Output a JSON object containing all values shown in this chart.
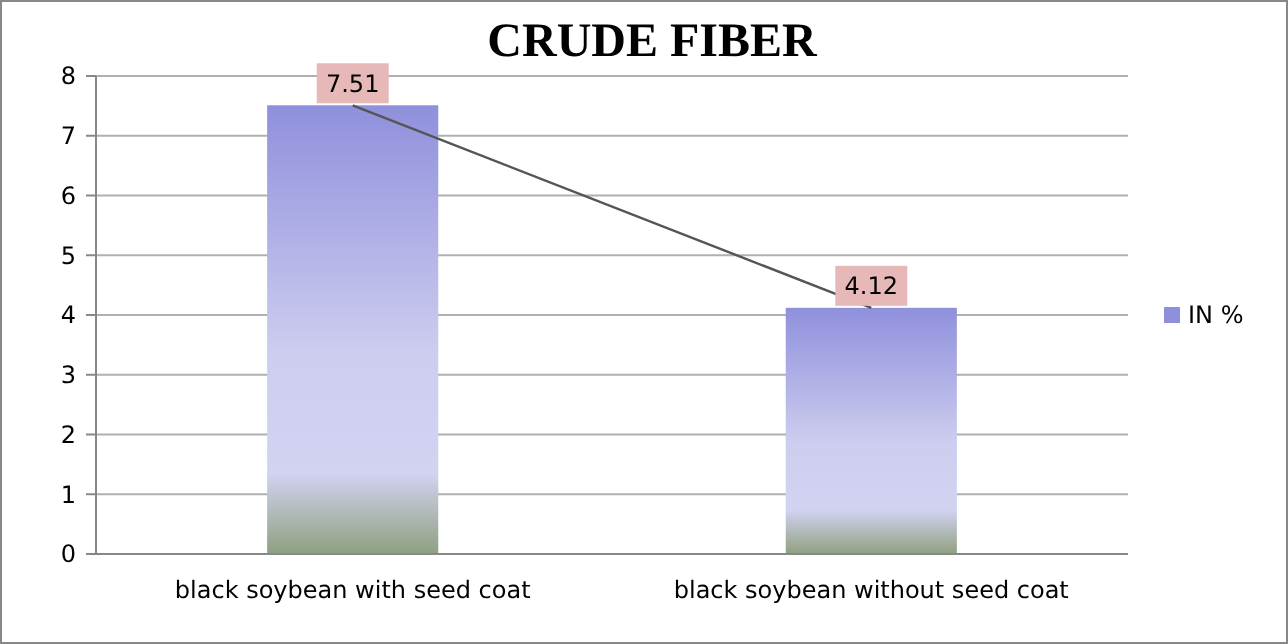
{
  "chart_data": {
    "type": "bar",
    "title": "CRUDE FIBER",
    "categories": [
      "black soybean with seed coat",
      "black soybean without seed coat"
    ],
    "series": [
      {
        "name": "IN %",
        "color": "#8f90dc",
        "values": [
          7.51,
          4.12
        ]
      },
      {
        "type": "line",
        "color": "#555555",
        "values": [
          7.51,
          4.12
        ],
        "value_labels": [
          "7.51",
          "4.12"
        ]
      }
    ],
    "ylim": [
      0,
      8
    ],
    "yticks": [
      0,
      1,
      2,
      3,
      4,
      5,
      6,
      7,
      8
    ],
    "grid": "y",
    "legend": "right",
    "marker": "none",
    "line_style": "solid"
  }
}
